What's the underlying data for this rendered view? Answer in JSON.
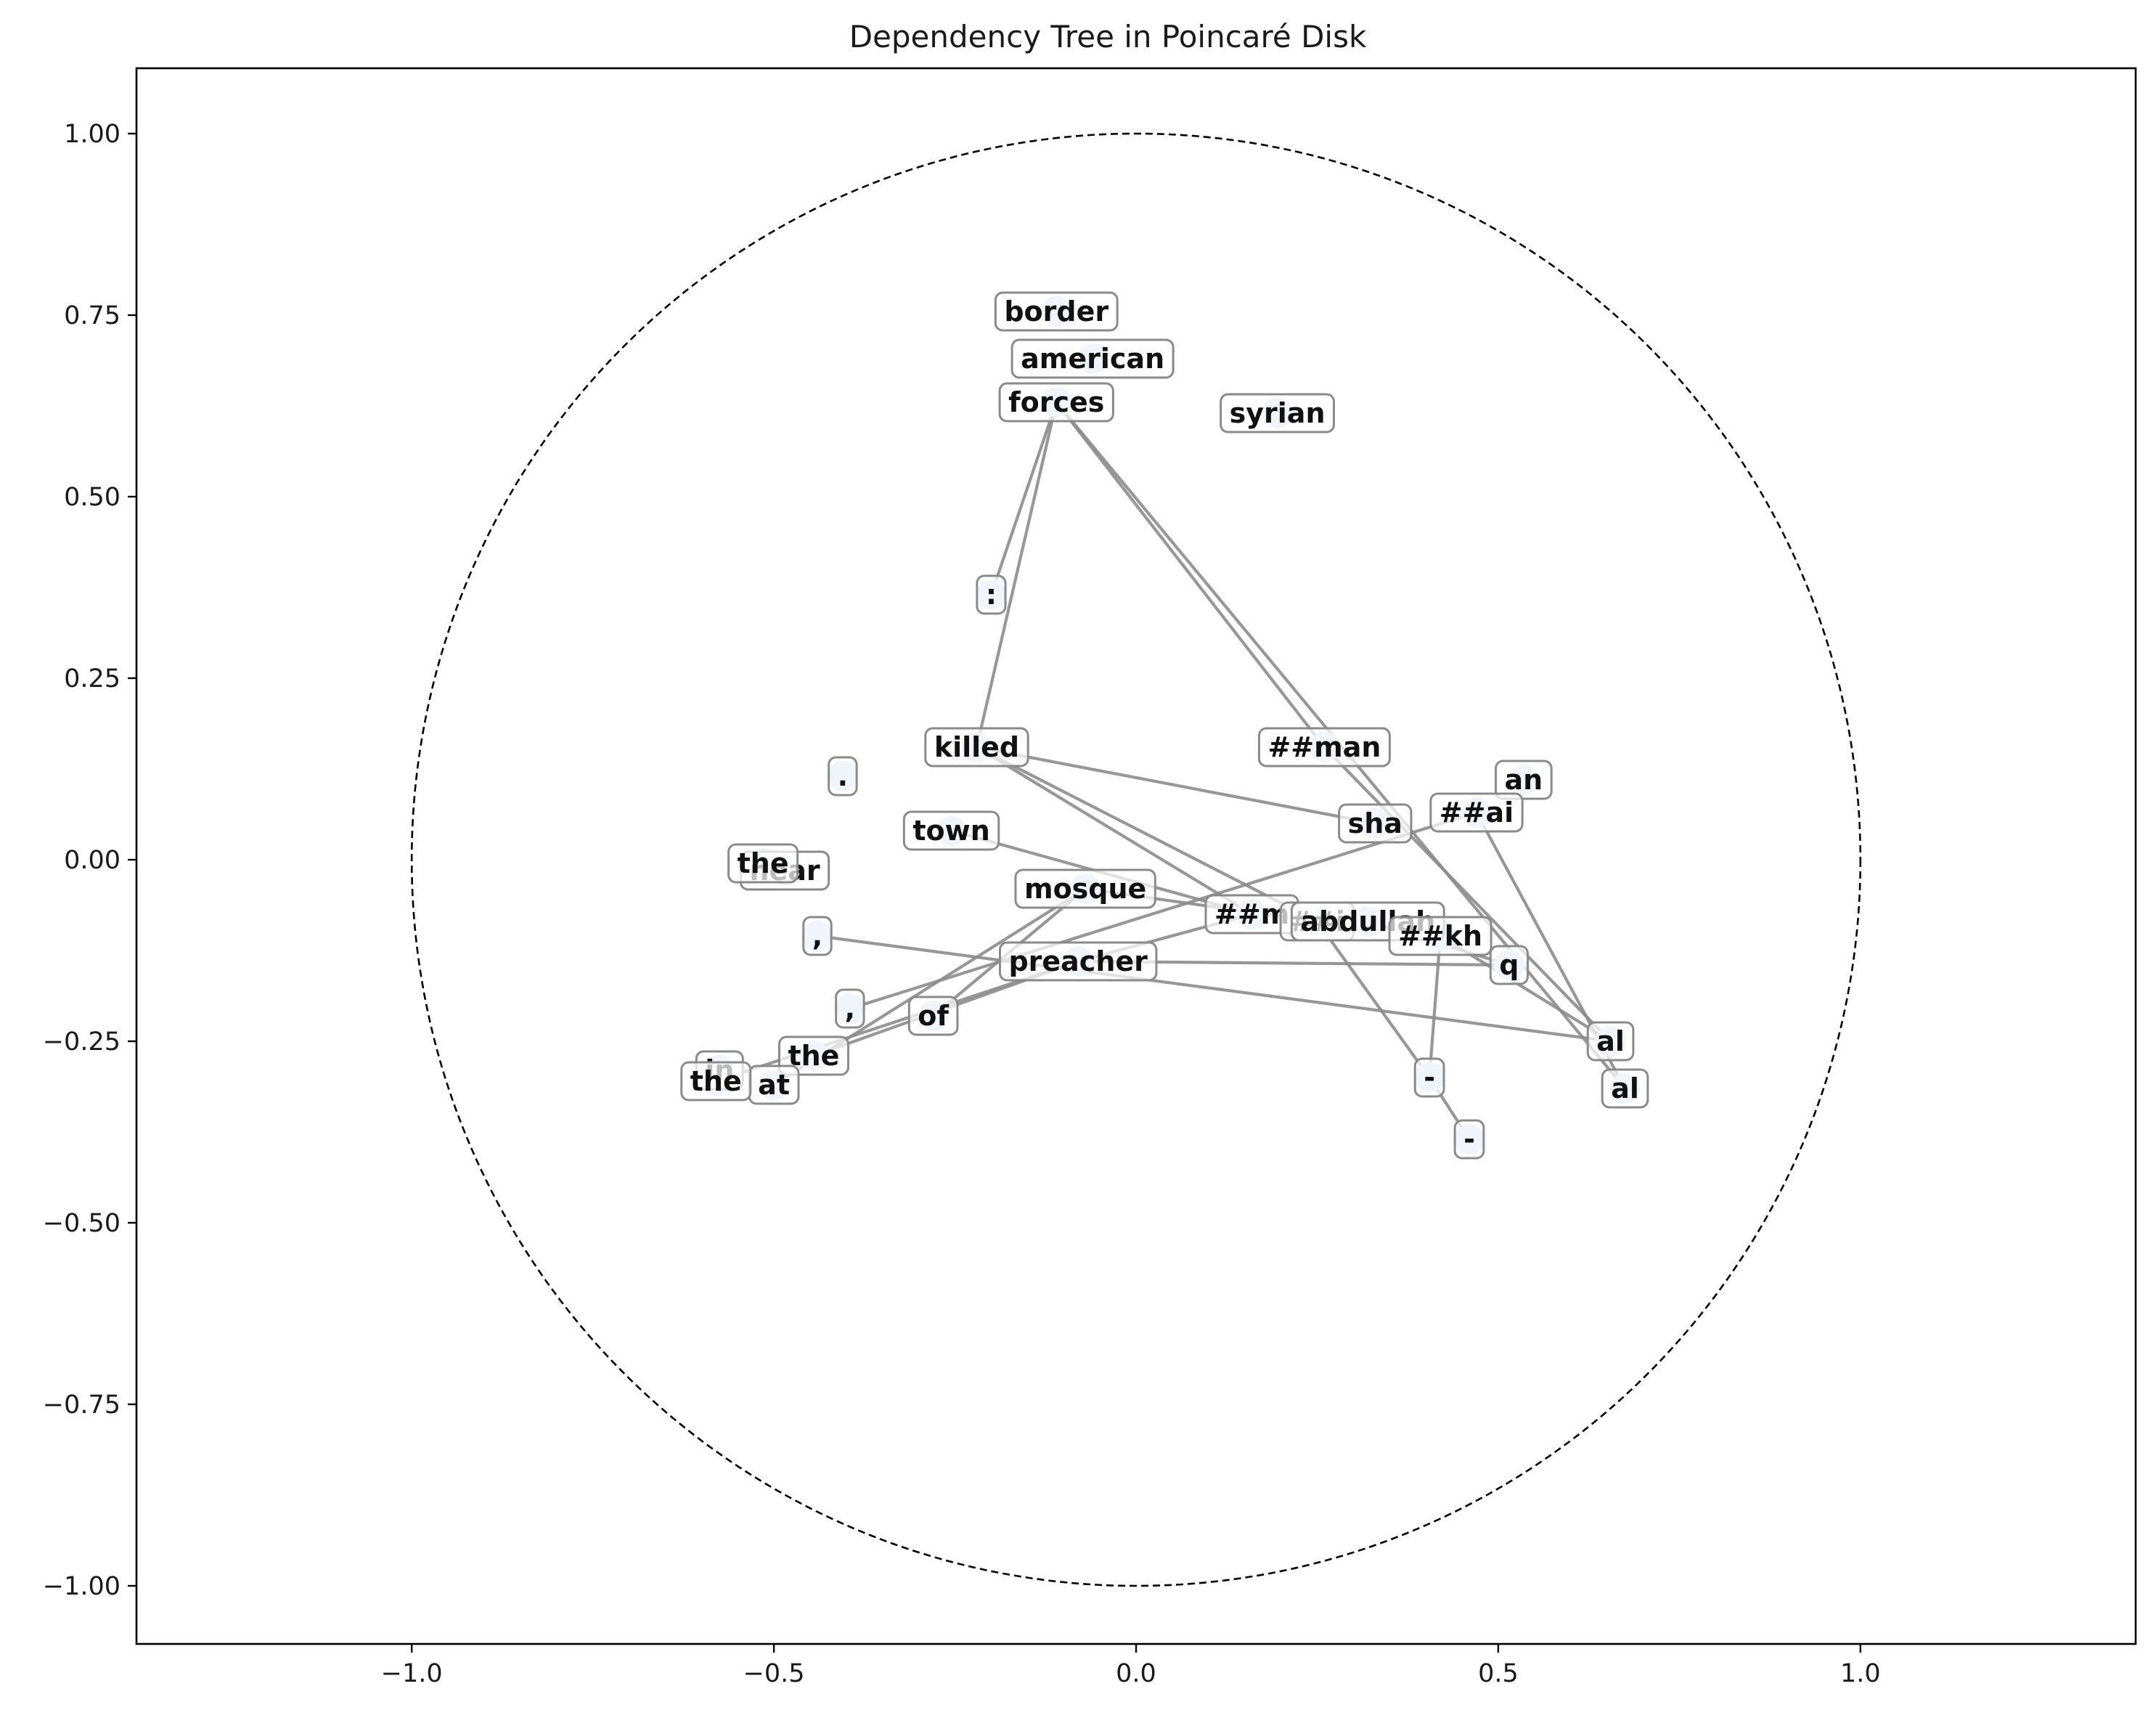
{
  "chart_data": {
    "type": "scatter",
    "title": "Dependency Tree in Poincaré Disk",
    "xlabel": "",
    "ylabel": "",
    "xlim": [
      -1.38,
      1.38
    ],
    "ylim": [
      -1.08,
      1.09
    ],
    "xticks": [
      {
        "value": -1.0,
        "label": "−1.0"
      },
      {
        "value": -0.5,
        "label": "−0.5"
      },
      {
        "value": 0.0,
        "label": "0.0"
      },
      {
        "value": 0.5,
        "label": "0.5"
      },
      {
        "value": 1.0,
        "label": "1.0"
      }
    ],
    "yticks": [
      {
        "value": 1.0,
        "label": "1.00"
      },
      {
        "value": 0.75,
        "label": "0.75"
      },
      {
        "value": 0.5,
        "label": "0.50"
      },
      {
        "value": 0.25,
        "label": "0.25"
      },
      {
        "value": 0.0,
        "label": "0.00"
      },
      {
        "value": -0.25,
        "label": "−0.25"
      },
      {
        "value": -0.5,
        "label": "−0.50"
      },
      {
        "value": -0.75,
        "label": "−0.75"
      },
      {
        "value": -1.0,
        "label": "−1.00"
      }
    ],
    "grid": false,
    "boundary": {
      "shape": "unit-circle",
      "style": "dashed",
      "color": "#000000"
    },
    "point_color": "#c6d9ec",
    "edge_color": "#8c8c8c",
    "nodes": [
      {
        "id": 0,
        "label": "border",
        "x": -0.11,
        "y": 0.755
      },
      {
        "id": 1,
        "label": "american",
        "x": -0.06,
        "y": 0.69
      },
      {
        "id": 2,
        "label": "forces",
        "x": -0.11,
        "y": 0.63
      },
      {
        "id": 3,
        "label": "syrian",
        "x": 0.195,
        "y": 0.615
      },
      {
        "id": 4,
        "label": ":",
        "x": -0.2,
        "y": 0.365
      },
      {
        "id": 5,
        "label": "killed",
        "x": -0.22,
        "y": 0.155
      },
      {
        "id": 6,
        "label": "##man",
        "x": 0.26,
        "y": 0.155
      },
      {
        "id": 7,
        "label": ".",
        "x": -0.405,
        "y": 0.115
      },
      {
        "id": 8,
        "label": "an",
        "x": 0.535,
        "y": 0.11
      },
      {
        "id": 9,
        "label": "sha",
        "x": 0.33,
        "y": 0.05
      },
      {
        "id": 10,
        "label": "##ai",
        "x": 0.47,
        "y": 0.065
      },
      {
        "id": 11,
        "label": "town",
        "x": -0.255,
        "y": 0.04
      },
      {
        "id": 12,
        "label": "near",
        "x": -0.485,
        "y": -0.015
      },
      {
        "id": 13,
        "label": "the",
        "x": -0.515,
        "y": -0.005
      },
      {
        "id": 14,
        "label": "mosque",
        "x": -0.07,
        "y": -0.04
      },
      {
        "id": 15,
        "label": "##m",
        "x": 0.16,
        "y": -0.075
      },
      {
        "id": 16,
        "label": "##i",
        "x": 0.25,
        "y": -0.085
      },
      {
        "id": 17,
        "label": "abdullah",
        "x": 0.32,
        "y": -0.085
      },
      {
        "id": 18,
        "label": "##kh",
        "x": 0.42,
        "y": -0.105
      },
      {
        "id": 19,
        "label": "q",
        "x": 0.515,
        "y": -0.145
      },
      {
        "id": 20,
        "label": ",",
        "x": -0.44,
        "y": -0.105
      },
      {
        "id": 21,
        "label": "preacher",
        "x": -0.08,
        "y": -0.14
      },
      {
        "id": 22,
        "label": ",",
        "x": -0.395,
        "y": -0.205
      },
      {
        "id": 23,
        "label": "of",
        "x": -0.28,
        "y": -0.215
      },
      {
        "id": 24,
        "label": "al",
        "x": 0.655,
        "y": -0.25
      },
      {
        "id": 25,
        "label": "the",
        "x": -0.445,
        "y": -0.27
      },
      {
        "id": 26,
        "label": "in",
        "x": -0.575,
        "y": -0.29
      },
      {
        "id": 27,
        "label": "at",
        "x": -0.5,
        "y": -0.31
      },
      {
        "id": 28,
        "label": "the",
        "x": -0.58,
        "y": -0.305
      },
      {
        "id": 29,
        "label": "-",
        "x": 0.405,
        "y": -0.3
      },
      {
        "id": 30,
        "label": "al",
        "x": 0.675,
        "y": -0.315
      },
      {
        "id": 31,
        "label": "-",
        "x": 0.46,
        "y": -0.385
      }
    ],
    "edges": [
      [
        2,
        4
      ],
      [
        2,
        5
      ],
      [
        2,
        6
      ],
      [
        6,
        24
      ],
      [
        2,
        30
      ],
      [
        5,
        9
      ],
      [
        5,
        15
      ],
      [
        5,
        16
      ],
      [
        11,
        15
      ],
      [
        14,
        16
      ],
      [
        15,
        21
      ],
      [
        21,
        25
      ],
      [
        16,
        29
      ],
      [
        29,
        31
      ],
      [
        10,
        22
      ],
      [
        10,
        30
      ],
      [
        18,
        29
      ],
      [
        19,
        21
      ],
      [
        20,
        24
      ],
      [
        23,
        14
      ],
      [
        27,
        14
      ],
      [
        28,
        21
      ],
      [
        18,
        24
      ],
      [
        17,
        19
      ]
    ]
  }
}
